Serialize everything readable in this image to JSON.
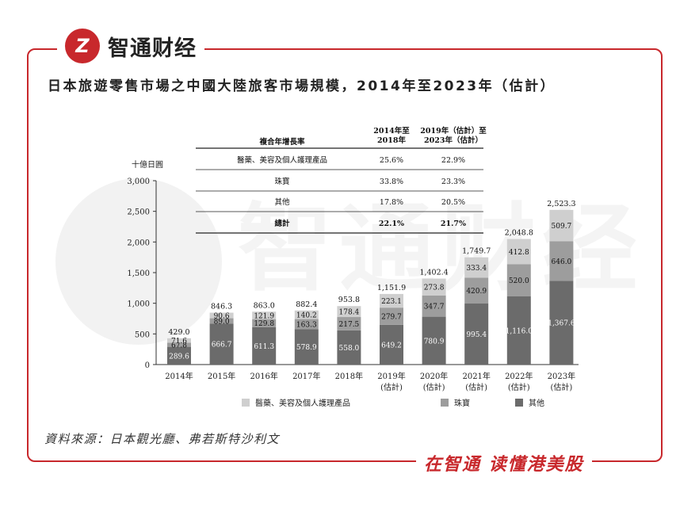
{
  "logo": {
    "mark": "Z",
    "text": "智通财经"
  },
  "title": "日本旅遊零售市場之中國大陸旅客市場規模，2014年至2023年（估計）",
  "source": "資料來源：日本觀光廳、弗若斯特沙利文",
  "slogan": "在智通 读懂港美股",
  "watermark_text": "智通财经",
  "growth_table": {
    "headers": [
      "複合年增長率",
      "2014年至\n2018年",
      "2019年（估計）至\n2023年（估計）"
    ],
    "rows": [
      {
        "label": "醫藥、美容及個人護理產品",
        "v1": "25.6%",
        "v2": "22.9%"
      },
      {
        "label": "珠寶",
        "v1": "33.8%",
        "v2": "23.3%"
      },
      {
        "label": "其他",
        "v1": "17.8%",
        "v2": "20.5%"
      },
      {
        "label": "總計",
        "v1": "22.1%",
        "v2": "21.7%"
      }
    ]
  },
  "chart_data": {
    "type": "bar",
    "stacked": true,
    "ylabel": "十億日圓",
    "ylim": [
      0,
      3000
    ],
    "yticks": [
      "0",
      "500",
      "1,000",
      "1,500",
      "2,000",
      "2,500",
      "3,000"
    ],
    "ytick_values": [
      0,
      500,
      1000,
      1500,
      2000,
      2500,
      3000
    ],
    "categories": [
      "2014年",
      "2015年",
      "2016年",
      "2017年",
      "2018年",
      "2019年\n(估計)",
      "2020年\n(估計)",
      "2021年\n(估計)",
      "2022年\n(估計)",
      "2023年\n(估計)"
    ],
    "series": [
      {
        "name": "其他",
        "color": "#6b6b6b",
        "values": [
          289.6,
          666.7,
          611.3,
          578.9,
          558.0,
          649.2,
          780.9,
          995.4,
          1116.0,
          1367.6
        ],
        "labels": [
          "289.6",
          "666.7",
          "611.3",
          "578.9",
          "558.0",
          "649.2",
          "780.9",
          "995.4",
          "1,116.0",
          "1,367.6"
        ]
      },
      {
        "name": "珠寶",
        "color": "#9d9d9d",
        "values": [
          67.8,
          89.0,
          129.8,
          163.3,
          217.5,
          279.7,
          347.7,
          420.9,
          520.0,
          646.0
        ],
        "labels": [
          "67.8",
          "89.0",
          "129.8",
          "163.3",
          "217.5",
          "279.7",
          "347.7",
          "420.9",
          "520.0",
          "646.0"
        ]
      },
      {
        "name": "醫藥、美容及個人護理產品",
        "color": "#cfcfcf",
        "values": [
          71.6,
          90.6,
          121.9,
          140.2,
          178.4,
          223.1,
          273.8,
          333.4,
          412.8,
          509.7
        ],
        "labels": [
          "71.6",
          "90.6",
          "121.9",
          "140.2",
          "178.4",
          "223.1",
          "273.8",
          "333.4",
          "412.8",
          "509.7"
        ]
      }
    ],
    "totals": [
      429.0,
      846.3,
      863.0,
      882.4,
      953.8,
      1151.9,
      1402.4,
      1749.7,
      2048.8,
      2523.3
    ],
    "total_labels": [
      "429.0",
      "846.3",
      "863.0",
      "882.4",
      "953.8",
      "1,151.9",
      "1,402.4",
      "1,749.7",
      "2,048.8",
      "2,523.3"
    ],
    "legend": [
      "醫藥、美容及個人護理產品",
      "珠寶",
      "其他"
    ],
    "legend_position": "bottom"
  }
}
